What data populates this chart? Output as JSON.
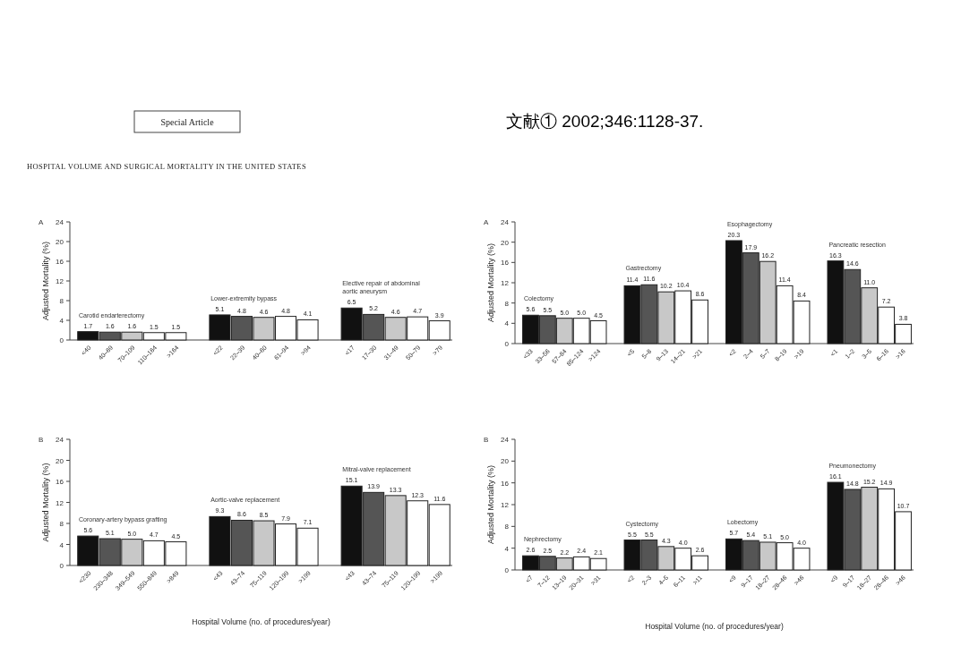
{
  "chart_data": [
    {
      "type": "bar",
      "title": "A",
      "ylabel": "Adjusted Mortality (%)",
      "ylim": [
        0,
        24
      ],
      "yticks": [
        0,
        4,
        8,
        12,
        16,
        20,
        24
      ],
      "categories": [
        "<40",
        "40–69",
        "70–109",
        "110–164",
        ">164",
        null,
        "<22",
        "22–39",
        "40–60",
        "61–94",
        ">94",
        null,
        "<17",
        "17–30",
        "31–49",
        "50–79",
        ">79"
      ],
      "values": [
        1.7,
        1.6,
        1.6,
        1.5,
        1.5,
        null,
        5.1,
        4.8,
        4.6,
        4.8,
        4.1,
        null,
        6.5,
        5.2,
        4.6,
        4.7,
        3.9
      ],
      "value_labels": [
        "1.7",
        "1.6",
        "1.6",
        "1.5",
        "1.5",
        null,
        "5.1",
        "4.8",
        "4.6",
        "4.8",
        "4.1",
        null,
        "6.5",
        "5.2",
        "4.6",
        "4.7",
        "3.9"
      ],
      "colors": [
        "#111111",
        "#555555",
        "#c8c8c8",
        "#ffffff",
        "#ffffff",
        null,
        "#111111",
        "#555555",
        "#c8c8c8",
        "#ffffff",
        "#ffffff",
        null,
        "#111111",
        "#555555",
        "#c8c8c8",
        "#ffffff",
        "#ffffff"
      ],
      "annotations": [
        "Carotid endarterectomy",
        "Lower-extremity bypass",
        "Elective repair of abdominal\naortic aneurysm",
        "Special Article",
        "文献①  2002;346:1128-37.",
        "HOSPITAL VOLUME AND SURGICAL MORTALITY IN THE UNITED STATES"
      ]
    },
    {
      "type": "bar",
      "title": "A",
      "ylabel": "Adjusted Mortality (%)",
      "ylim": [
        0,
        24
      ],
      "yticks": [
        0,
        4,
        8,
        12,
        16,
        20,
        24
      ],
      "categories": [
        "<33",
        "33–56",
        "57–84",
        "85–124",
        ">124",
        null,
        "<5",
        "5–8",
        "9–13",
        "14–21",
        ">21",
        null,
        "<2",
        "2–4",
        "5–7",
        "8–19",
        ">19",
        null,
        "<1",
        "1–2",
        "3–5",
        "6–16",
        ">16"
      ],
      "values": [
        5.6,
        5.5,
        5.0,
        5.0,
        4.5,
        null,
        11.4,
        11.6,
        10.2,
        10.4,
        8.6,
        null,
        20.3,
        17.9,
        16.2,
        11.4,
        8.4,
        null,
        16.3,
        14.6,
        11.0,
        7.2,
        3.8
      ],
      "value_labels": [
        "5.6",
        "5.5",
        "5.0",
        "5.0",
        "4.5",
        null,
        "11.4",
        "11.6",
        "10.2",
        "10.4",
        "8.6",
        null,
        "20.3",
        "17.9",
        "16.2",
        "11.4",
        "8.4",
        null,
        "16.3",
        "14.6",
        "11.0",
        "7.2",
        "3.8"
      ],
      "colors": [
        "#111111",
        "#555555",
        "#c8c8c8",
        "#ffffff",
        "#ffffff",
        null,
        "#111111",
        "#555555",
        "#c8c8c8",
        "#ffffff",
        "#ffffff",
        null,
        "#111111",
        "#555555",
        "#c8c8c8",
        "#ffffff",
        "#ffffff",
        null,
        "#111111",
        "#555555",
        "#c8c8c8",
        "#ffffff",
        "#ffffff"
      ],
      "annotations": [
        "Colectomy",
        "Gastrectomy",
        "Esophagectomy",
        "Pancreatic resection"
      ]
    },
    {
      "type": "bar",
      "title": "B",
      "ylabel": "Adjusted Mortality (%)",
      "xlabel": "Hospital Volume (no. of procedures/year)",
      "ylim": [
        0,
        24
      ],
      "yticks": [
        0,
        4,
        8,
        12,
        16,
        20,
        24
      ],
      "categories": [
        "<230",
        "230–348",
        "349–549",
        "550–849",
        ">849",
        null,
        "<43",
        "43–74",
        "75–119",
        "120–199",
        ">199",
        null,
        "<43",
        "43–74",
        "75–119",
        "120–199",
        ">199"
      ],
      "values": [
        5.6,
        5.1,
        5.0,
        4.7,
        4.5,
        null,
        9.3,
        8.6,
        8.5,
        7.9,
        7.1,
        null,
        15.1,
        13.9,
        13.3,
        12.3,
        11.6
      ],
      "value_labels": [
        "5.6",
        "5.1",
        "5.0",
        "4.7",
        "4.5",
        null,
        "9.3",
        "8.6",
        "8.5",
        "7.9",
        "7.1",
        null,
        "15.1",
        "13.9",
        "13.3",
        "12.3",
        "11.6"
      ],
      "colors": [
        "#111111",
        "#555555",
        "#c8c8c8",
        "#ffffff",
        "#ffffff",
        null,
        "#111111",
        "#555555",
        "#c8c8c8",
        "#ffffff",
        "#ffffff",
        null,
        "#111111",
        "#555555",
        "#c8c8c8",
        "#ffffff",
        "#ffffff"
      ],
      "annotations": [
        "Coronary-artery bypass grafting",
        "Aortic-valve replacement",
        "Mitral-valve replacement"
      ]
    },
    {
      "type": "bar",
      "title": "B",
      "ylabel": "Adjusted Mortality (%)",
      "xlabel": "Hospital Volume (no. of procedures/year)",
      "ylim": [
        0,
        24
      ],
      "yticks": [
        0,
        4,
        8,
        12,
        16,
        20,
        24
      ],
      "categories": [
        "<7",
        "7–12",
        "13–19",
        "20–31",
        ">31",
        null,
        "<2",
        "2–3",
        "4–5",
        "6–11",
        ">11",
        null,
        "<9",
        "9–17",
        "18–27",
        "28–46",
        ">46",
        null,
        "<9",
        "9–17",
        "18–27",
        "28–46",
        ">46"
      ],
      "values": [
        2.6,
        2.5,
        2.2,
        2.4,
        2.1,
        null,
        5.5,
        5.5,
        4.3,
        4.0,
        2.6,
        null,
        5.7,
        5.4,
        5.1,
        5.0,
        4.0,
        null,
        16.1,
        14.8,
        15.2,
        14.9,
        10.7
      ],
      "value_labels": [
        "2.6",
        "2.5",
        "2.2",
        "2.4",
        "2.1",
        null,
        "5.5",
        "5.5",
        "4.3",
        "4.0",
        "2.6",
        null,
        "5.7",
        "5.4",
        "5.1",
        "5.0",
        "4.0",
        null,
        "16.1",
        "14.8",
        "15.2",
        "14.9",
        "10.7"
      ],
      "colors": [
        "#111111",
        "#555555",
        "#c8c8c8",
        "#ffffff",
        "#ffffff",
        null,
        "#111111",
        "#555555",
        "#c8c8c8",
        "#ffffff",
        "#ffffff",
        null,
        "#111111",
        "#555555",
        "#c8c8c8",
        "#ffffff",
        "#ffffff",
        null,
        "#111111",
        "#555555",
        "#c8c8c8",
        "#ffffff",
        "#ffffff"
      ],
      "annotations": [
        "Nephrectomy",
        "Cystectomy",
        "Lobectomy",
        "Pneumonectomy"
      ]
    }
  ]
}
